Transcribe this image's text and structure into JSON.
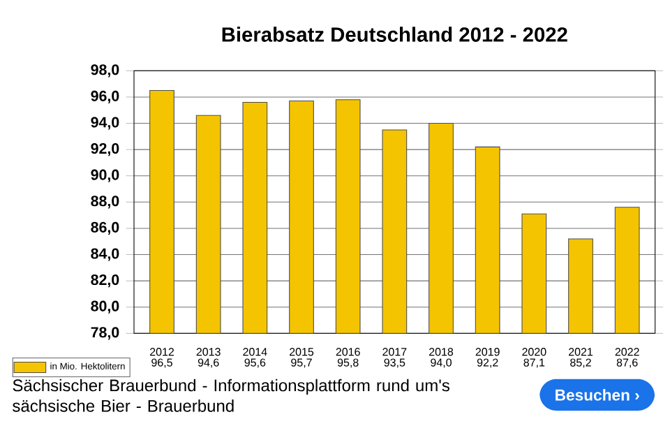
{
  "chart_data": {
    "type": "bar",
    "title": "Bierabsatz Deutschland 2012 - 2022",
    "categories": [
      "2012",
      "2013",
      "2014",
      "2015",
      "2016",
      "2017",
      "2018",
      "2019",
      "2020",
      "2021",
      "2022"
    ],
    "series": [
      {
        "name": "in Mio. Hektolitern",
        "color": "#f5c400",
        "values": [
          96.5,
          94.6,
          95.6,
          95.7,
          95.8,
          93.5,
          94.0,
          92.2,
          87.1,
          85.2,
          87.6
        ],
        "value_labels": [
          "96,5",
          "94,6",
          "95,6",
          "95,7",
          "95,8",
          "93,5",
          "94,0",
          "92,2",
          "87,1",
          "85,2",
          "87,6"
        ]
      }
    ],
    "ylim": [
      78,
      98
    ],
    "yticks": [
      {
        "value": 78,
        "label": "78,0"
      },
      {
        "value": 80,
        "label": "80,0"
      },
      {
        "value": 82,
        "label": "82,0"
      },
      {
        "value": 84,
        "label": "84,0"
      },
      {
        "value": 86,
        "label": "86,0"
      },
      {
        "value": 88,
        "label": "88,0"
      },
      {
        "value": 90,
        "label": "90,0"
      },
      {
        "value": 92,
        "label": "92,0"
      },
      {
        "value": 94,
        "label": "94,0"
      },
      {
        "value": 96,
        "label": "96,0"
      },
      {
        "value": 98,
        "label": "98,0"
      }
    ],
    "grid": "y",
    "legend": "bottom left",
    "annotations": [
      "Sächsischer Brauerbund - Informationsplattform rund um's sächsische Bier - Brauerbund",
      "Besuchen ›"
    ]
  }
}
